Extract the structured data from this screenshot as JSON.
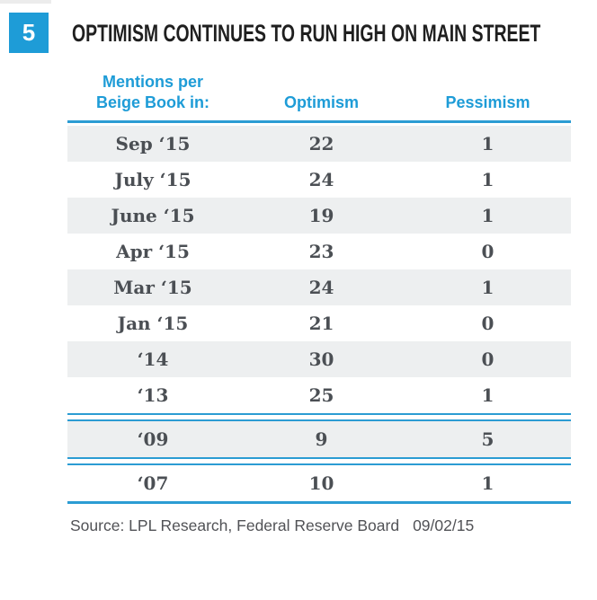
{
  "colors": {
    "accent_blue": "#1e9cd7",
    "rule_blue": "#2b9cd3",
    "row_shade_gray": "#edeff0",
    "cell_text_gray": "#4b4f54"
  },
  "header": {
    "badge": "5",
    "title": "OPTIMISM CONTINUES TO RUN HIGH ON MAIN STREET"
  },
  "table": {
    "columns": {
      "period_line1": "Mentions per",
      "period_line2": "Beige Book in:",
      "optimism": "Optimism",
      "pessimism": "Pessimism"
    },
    "rows": [
      {
        "period": "Sep ‘15",
        "optimism": 22,
        "pessimism": 1,
        "shaded": true
      },
      {
        "period": "July ‘15",
        "optimism": 24,
        "pessimism": 1,
        "shaded": false
      },
      {
        "period": "June ‘15",
        "optimism": 19,
        "pessimism": 1,
        "shaded": true
      },
      {
        "period": "Apr ‘15",
        "optimism": 23,
        "pessimism": 0,
        "shaded": false
      },
      {
        "period": "Mar ‘15",
        "optimism": 24,
        "pessimism": 1,
        "shaded": true
      },
      {
        "period": "Jan ‘15",
        "optimism": 21,
        "pessimism": 0,
        "shaded": false
      },
      {
        "period": "‘14",
        "optimism": 30,
        "pessimism": 0,
        "shaded": true
      },
      {
        "period": "‘13",
        "optimism": 25,
        "pessimism": 1,
        "shaded": false,
        "separator_after": true
      },
      {
        "period": "‘09",
        "optimism": 9,
        "pessimism": 5,
        "shaded": true,
        "separator_after": true
      },
      {
        "period": "‘07",
        "optimism": 10,
        "pessimism": 1,
        "shaded": false,
        "end_line_after": true
      }
    ]
  },
  "source": {
    "text": "Source: LPL Research, Federal Reserve Board",
    "date": "09/02/15"
  },
  "chart_data": {
    "type": "table",
    "figure_number": "5",
    "title": "OPTIMISM CONTINUES TO RUN HIGH ON MAIN STREET",
    "columns": [
      "Mentions per Beige Book in:",
      "Optimism",
      "Pessimism"
    ],
    "categories": [
      "Sep ‘15",
      "July ‘15",
      "June ‘15",
      "Apr ‘15",
      "Mar ‘15",
      "Jan ‘15",
      "‘14",
      "‘13",
      "‘09",
      "‘07"
    ],
    "series": [
      {
        "name": "Optimism",
        "values": [
          22,
          24,
          19,
          23,
          24,
          21,
          30,
          25,
          9,
          10
        ]
      },
      {
        "name": "Pessimism",
        "values": [
          1,
          1,
          1,
          0,
          1,
          0,
          0,
          1,
          5,
          1
        ]
      }
    ],
    "source": "Source: LPL Research, Federal Reserve Board 09/02/15",
    "layout_hints": {
      "shaded_row_indices": [
        0,
        2,
        4,
        6,
        8
      ],
      "double_rule_after_indices": [
        7,
        8
      ],
      "grid": "horizontal rules only"
    }
  }
}
